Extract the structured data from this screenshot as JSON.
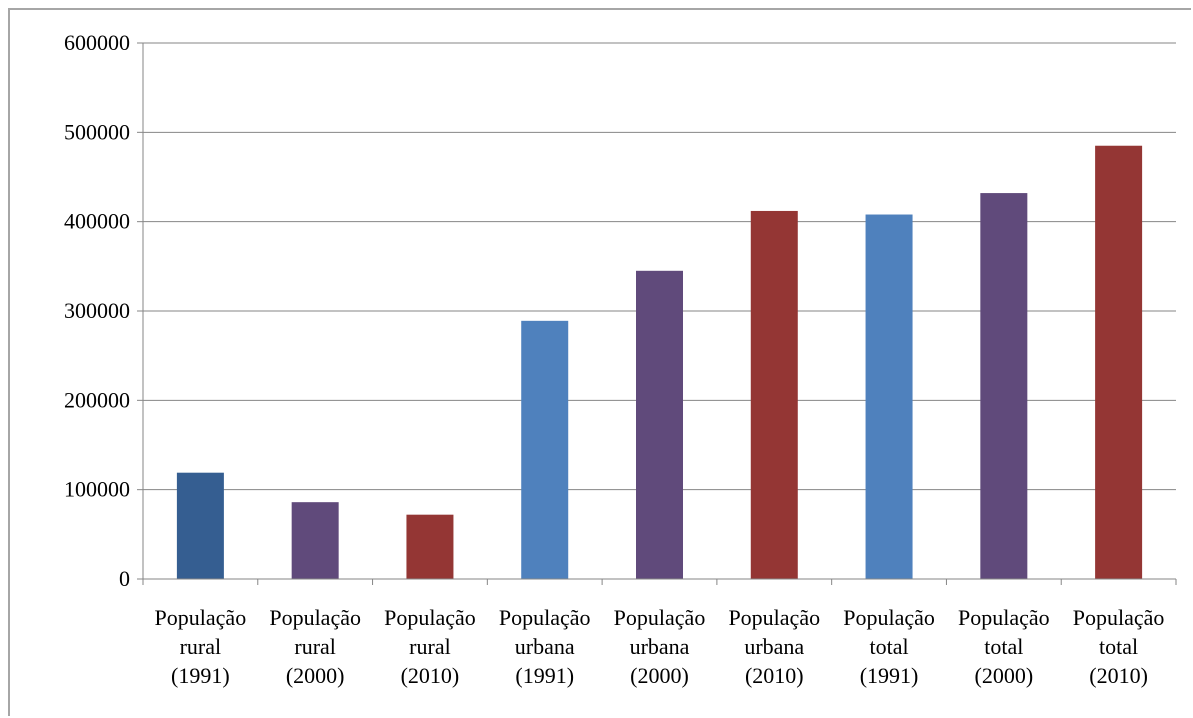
{
  "chart_data": {
    "type": "bar",
    "title": "",
    "xlabel": "",
    "ylabel": "",
    "ylim": [
      0,
      600000
    ],
    "yticks": [
      0,
      100000,
      200000,
      300000,
      400000,
      500000,
      600000
    ],
    "grid": true,
    "legend": "none",
    "categories": [
      [
        "População",
        "rural",
        "(1991)"
      ],
      [
        "População",
        "rural",
        "(2000)"
      ],
      [
        "População",
        "rural",
        "(2010)"
      ],
      [
        "População",
        "urbana",
        "(1991)"
      ],
      [
        "População",
        "urbana",
        "(2000)"
      ],
      [
        "População",
        "urbana",
        "(2010)"
      ],
      [
        "População",
        "total",
        "(1991)"
      ],
      [
        "População",
        "total",
        "(2000)"
      ],
      [
        "População",
        "total",
        "(2010)"
      ]
    ],
    "values": [
      119000,
      86000,
      72000,
      289000,
      345000,
      412000,
      408000,
      432000,
      485000
    ],
    "colors": [
      "#355e91",
      "#604a7b",
      "#943634",
      "#4f81bd",
      "#604a7b",
      "#943634",
      "#4f81bd",
      "#604a7b",
      "#943634"
    ]
  }
}
